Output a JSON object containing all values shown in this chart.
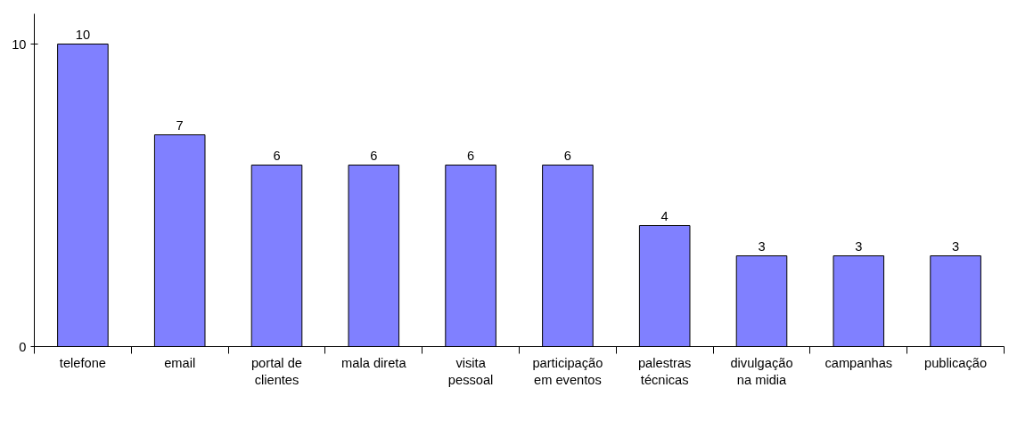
{
  "chart_data": {
    "type": "bar",
    "categories": [
      "telefone",
      "email",
      "portal de clientes",
      "mala direta",
      "visita pessoal",
      "participação em eventos",
      "palestras técnicas",
      "divulgação na midia",
      "campanhas",
      "publicação"
    ],
    "values": [
      10,
      7,
      6,
      6,
      6,
      6,
      4,
      3,
      3,
      3
    ],
    "color": "#8080ff",
    "ylim": [
      0,
      11
    ],
    "yticks": [
      0,
      10
    ],
    "data_labels": true,
    "grid": false
  }
}
